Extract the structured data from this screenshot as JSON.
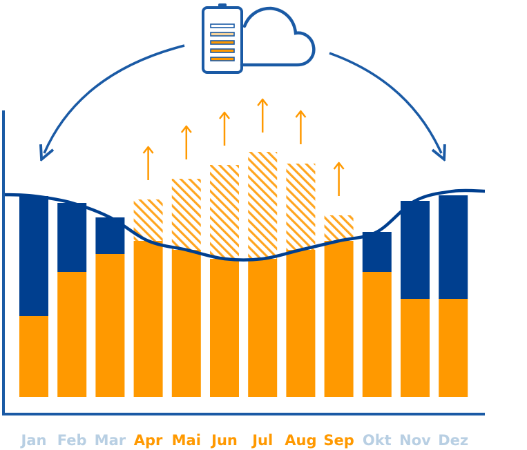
{
  "chart_data": {
    "type": "bar",
    "stacked": true,
    "categories": [
      "Jan",
      "Feb",
      "Mar",
      "Apr",
      "Mai",
      "Jun",
      "Jul",
      "Aug",
      "Sep",
      "Okt",
      "Nov",
      "Dez"
    ],
    "series": [
      {
        "color": "#ff9900",
        "values": [
          117,
          181,
          207,
          226,
          213,
          200,
          200,
          213,
          226,
          181,
          142,
          142
        ]
      },
      {
        "color": "#003f8f",
        "values": [
          174,
          100,
          53,
          0,
          0,
          0,
          0,
          0,
          0,
          58,
          142,
          150
        ]
      },
      {
        "color": "#ffa51f",
        "pattern": "hatched",
        "values": [
          0,
          0,
          0,
          60,
          103,
          136,
          155,
          125,
          37,
          0,
          0,
          0
        ]
      }
    ],
    "demand_curve": [
      291,
      281,
      260,
      226,
      213,
      200,
      200,
      213,
      226,
      239,
      284,
      298
    ],
    "surplus_arrows": [
      "Apr",
      "Mai",
      "Jun",
      "Jul",
      "Aug",
      "Sep"
    ],
    "label_colors": {
      "Jan": "#b8cfe3",
      "Feb": "#b8cfe3",
      "Mar": "#b8cfe3",
      "Apr": "#ff9900",
      "Mai": "#ff9900",
      "Jun": "#ff9900",
      "Jul": "#ff9900",
      "Aug": "#ff9900",
      "Sep": "#ff9900",
      "Okt": "#b8cfe3",
      "Nov": "#b8cfe3",
      "Dez": "#b8cfe3"
    },
    "ylim": [
      0,
      420
    ],
    "icons": [
      "battery-icon",
      "cloud-icon"
    ],
    "colors": {
      "accent_blue": "#1a5aa5",
      "dark_blue": "#003f8f",
      "orange": "#ff9900"
    }
  }
}
